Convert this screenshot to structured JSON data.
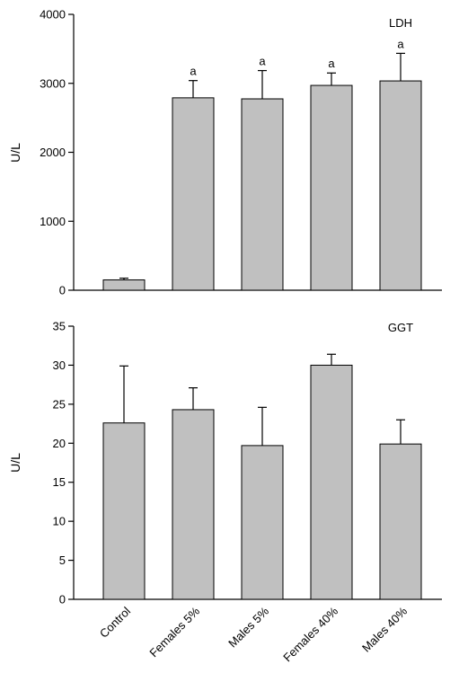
{
  "colors": {
    "bar_fill": "#c0c0c0",
    "bar_stroke": "#000000",
    "axis": "#000000"
  },
  "chart_data": [
    {
      "type": "bar",
      "panel_label": "LDH",
      "ylabel": "U/L",
      "xlabel": "",
      "ylim": [
        0,
        4000
      ],
      "yticks": [
        0,
        1000,
        2000,
        3000,
        4000
      ],
      "categories": [
        "Control",
        "Females 5%",
        "Males 5%",
        "Females 40%",
        "Males 40%"
      ],
      "values": [
        150,
        2790,
        2775,
        2970,
        3035
      ],
      "error_plus": [
        25,
        250,
        410,
        180,
        400
      ],
      "annotations": [
        "",
        "a",
        "a",
        "a",
        "a"
      ],
      "grid": false,
      "legend": "none"
    },
    {
      "type": "bar",
      "panel_label": "GGT",
      "ylabel": "U/L",
      "xlabel": "",
      "ylim": [
        0,
        35
      ],
      "yticks": [
        0,
        5,
        10,
        15,
        20,
        25,
        30,
        35
      ],
      "categories": [
        "Control",
        "Females 5%",
        "Males 5%",
        "Females 40%",
        "Males 40%"
      ],
      "values": [
        22.6,
        24.3,
        19.7,
        30.0,
        19.9
      ],
      "error_plus": [
        7.3,
        2.8,
        4.9,
        1.4,
        3.1
      ],
      "annotations": [
        "",
        "",
        "",
        "",
        ""
      ],
      "grid": false,
      "legend": "none"
    }
  ]
}
